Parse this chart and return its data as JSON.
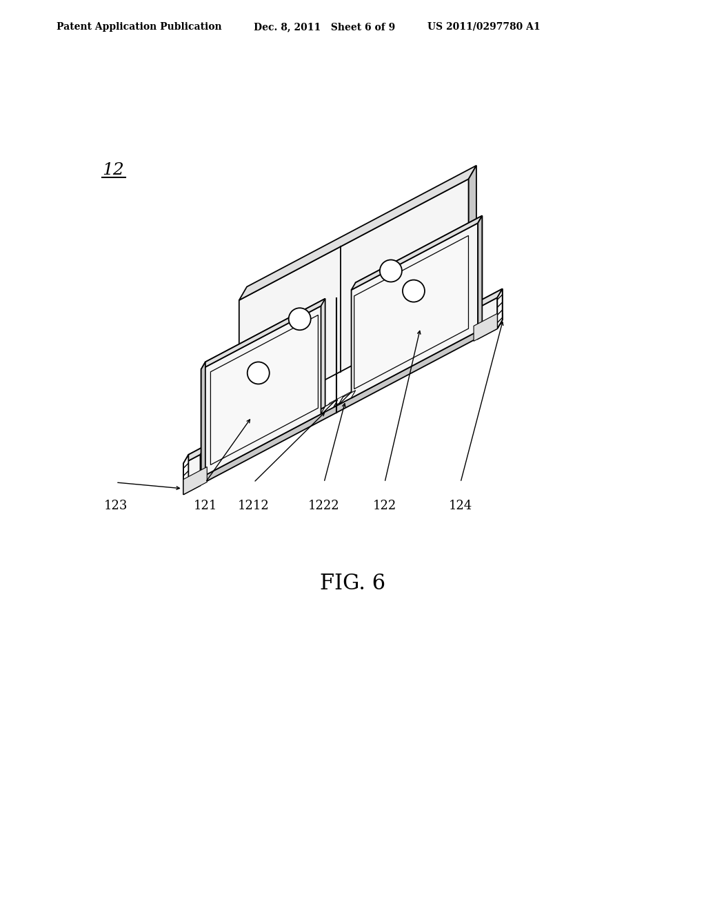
{
  "bg_color": "#ffffff",
  "header_left": "Patent Application Publication",
  "header_mid": "Dec. 8, 2011   Sheet 6 of 9",
  "header_right": "US 2011/0297780 A1",
  "label_12": "12",
  "fig_label": "FIG. 6",
  "part_labels": [
    "123",
    "121",
    "1212",
    "1222",
    "122",
    "124"
  ],
  "line_color": "#000000",
  "fill_white": "#ffffff",
  "fill_light": "#f5f5f5",
  "fill_mid": "#e0e0e0",
  "fill_dark": "#c8c8c8",
  "fill_hatch": "#ffffff"
}
